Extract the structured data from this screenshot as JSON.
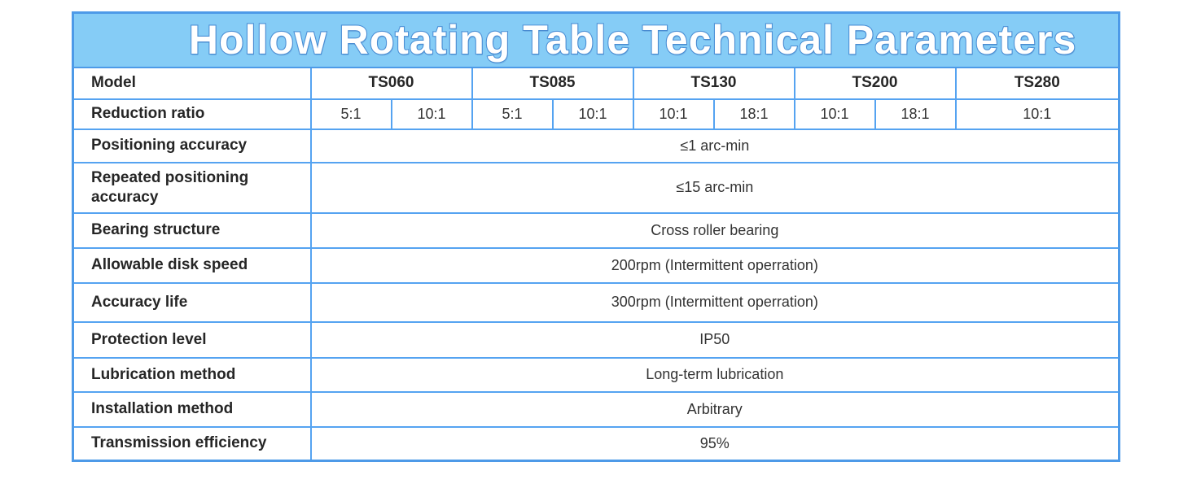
{
  "title": "Hollow Rotating Table Technical Parameters",
  "table": {
    "model_row": {
      "label": "Model",
      "models": [
        "TS060",
        "TS085",
        "TS130",
        "TS200",
        "TS280"
      ]
    },
    "ratio_row": {
      "label": "Reduction ratio",
      "values": [
        "5:1",
        "10:1",
        "5:1",
        "10:1",
        "10:1",
        "18:1",
        "10:1",
        "18:1",
        "10:1"
      ]
    },
    "spec_rows": [
      {
        "label": "Positioning accuracy",
        "value": "≤1 arc-min"
      },
      {
        "label": "Repeated positioning accuracy",
        "value": "≤15 arc-min"
      },
      {
        "label": "Bearing structure",
        "value": "Cross roller bearing"
      },
      {
        "label": "Allowable disk speed",
        "value": "200rpm (Intermittent operration)"
      },
      {
        "label": "Accuracy life",
        "value": "300rpm (Intermittent operration)"
      },
      {
        "label": "Protection level",
        "value": "IP50"
      },
      {
        "label": "Lubrication method",
        "value": "Long-term lubrication"
      },
      {
        "label": "Installation method",
        "value": "Arbitrary"
      },
      {
        "label": "Transmission efficiency",
        "value": "95%"
      }
    ]
  },
  "colors": {
    "banner_background": "#85ccf6",
    "banner_title_fill": "#ffffff",
    "banner_title_outline": "#4b90d6",
    "grid_border": "#55a3f1",
    "outer_border": "#4d9ae8",
    "label_text": "#262626",
    "value_text": "#333333"
  }
}
